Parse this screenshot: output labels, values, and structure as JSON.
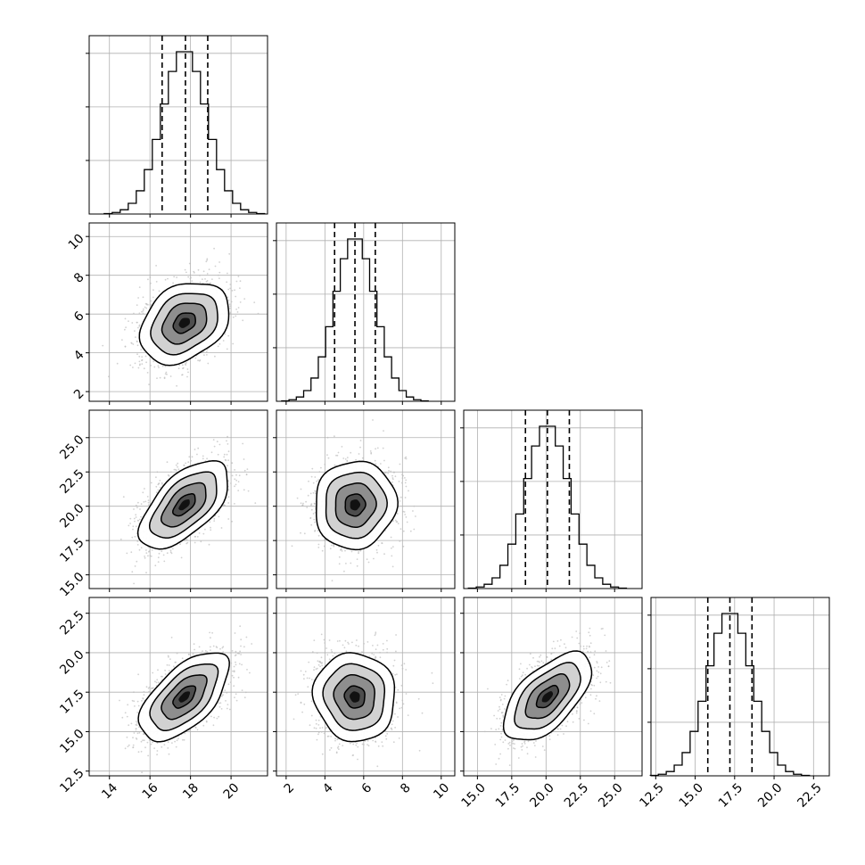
{
  "chart_data": {
    "type": "corner",
    "title": "",
    "grid": true,
    "variables": [
      {
        "xlim": [
          13.0,
          21.8
        ],
        "ylim": [
          1.5,
          10.7
        ],
        "ticks": [
          14,
          16,
          18,
          20
        ],
        "tick_labels": [
          "14",
          "16",
          "18",
          "20"
        ],
        "mean": 17.7,
        "std": 1.1,
        "quantiles": [
          16.6,
          17.75,
          18.85
        ]
      },
      {
        "xlim": [
          1.5,
          10.7
        ],
        "ylim": [
          1.5,
          10.7
        ],
        "ticks": [
          2,
          4,
          6,
          8,
          10
        ],
        "tick_labels": [
          "2",
          "4",
          "6",
          "8",
          "10"
        ],
        "mean": 5.55,
        "std": 1.05,
        "quantiles": [
          4.5,
          5.55,
          6.6
        ]
      },
      {
        "xlim": [
          14.0,
          27.0
        ],
        "ylim": [
          14.0,
          27.0
        ],
        "ticks": [
          15.0,
          17.5,
          20.0,
          22.5,
          25.0
        ],
        "tick_labels": [
          "15.0",
          "17.5",
          "20.0",
          "22.5",
          "25.0"
        ],
        "mean": 20.1,
        "std": 1.6,
        "quantiles": [
          18.5,
          20.1,
          21.7
        ]
      },
      {
        "xlim": [
          12.2,
          23.5
        ],
        "ylim": [
          12.2,
          23.5
        ],
        "ticks": [
          12.5,
          15.0,
          17.5,
          20.0,
          22.5
        ],
        "tick_labels": [
          "12.5",
          "15.0",
          "17.5",
          "20.0",
          "22.5"
        ],
        "mean": 17.2,
        "std": 1.4,
        "quantiles": [
          15.8,
          17.2,
          18.6
        ]
      }
    ],
    "correlations": {
      "1-0": 0.3,
      "2-0": 0.6,
      "2-1": 0.05,
      "3-0": 0.6,
      "3-1": -0.05,
      "3-2": 0.6
    },
    "contour_levels_sigma": [
      0.5,
      1.0,
      1.5,
      2.0
    ],
    "quantile_style": "dashed"
  }
}
